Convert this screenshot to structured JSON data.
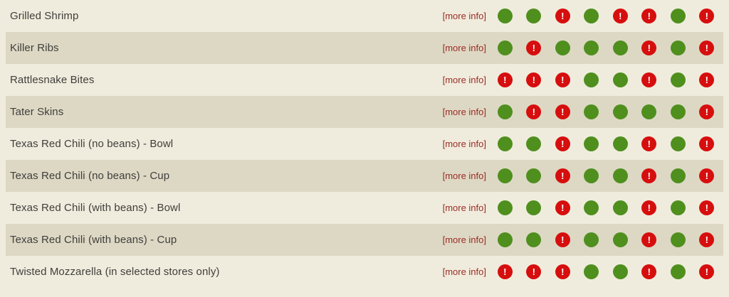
{
  "colors": {
    "page_bg": "#f0ecdd",
    "row_alt_bg": "#ddd8c4",
    "green_dot": "#4f8f1e",
    "red_dot": "#d60e0e",
    "link_color": "#9c2b24",
    "item_text": "#3f3e3c"
  },
  "menu": {
    "more_info_label": "[more info]",
    "alert_glyph": "!",
    "items": [
      {
        "name": "Grilled Shrimp",
        "dots": [
          "green",
          "green",
          "red",
          "green",
          "red",
          "red",
          "green",
          "red"
        ]
      },
      {
        "name": "Killer Ribs",
        "dots": [
          "green",
          "red",
          "green",
          "green",
          "green",
          "red",
          "green",
          "red"
        ]
      },
      {
        "name": "Rattlesnake Bites",
        "dots": [
          "red",
          "red",
          "red",
          "green",
          "green",
          "red",
          "green",
          "red"
        ]
      },
      {
        "name": "Tater Skins",
        "dots": [
          "green",
          "red",
          "red",
          "green",
          "green",
          "green",
          "green",
          "red"
        ]
      },
      {
        "name": "Texas Red Chili (no beans) - Bowl",
        "dots": [
          "green",
          "green",
          "red",
          "green",
          "green",
          "red",
          "green",
          "red"
        ]
      },
      {
        "name": "Texas Red Chili (no beans) - Cup",
        "dots": [
          "green",
          "green",
          "red",
          "green",
          "green",
          "red",
          "green",
          "red"
        ]
      },
      {
        "name": "Texas Red Chili (with beans) - Bowl",
        "dots": [
          "green",
          "green",
          "red",
          "green",
          "green",
          "red",
          "green",
          "red"
        ]
      },
      {
        "name": "Texas Red Chili (with beans) - Cup",
        "dots": [
          "green",
          "green",
          "red",
          "green",
          "green",
          "red",
          "green",
          "red"
        ]
      },
      {
        "name": "Twisted Mozzarella (in selected stores only)",
        "dots": [
          "red",
          "red",
          "red",
          "green",
          "green",
          "red",
          "green",
          "red"
        ]
      }
    ]
  }
}
